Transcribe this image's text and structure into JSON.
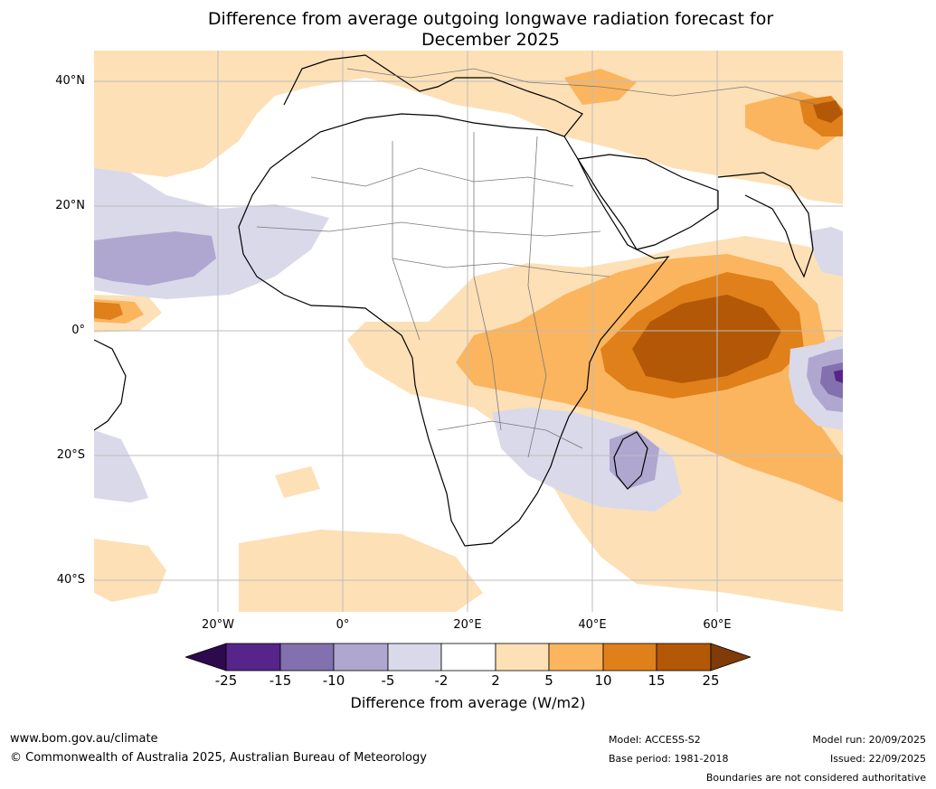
{
  "title": {
    "line1": "Difference from average outgoing longwave radiation forecast for",
    "line2": "December 2025"
  },
  "map": {
    "lat_labels": [
      "40°N",
      "20°N",
      "0°",
      "20°S",
      "40°S"
    ],
    "lon_labels": [
      "20°W",
      "0°",
      "20°E",
      "40°E",
      "60°E"
    ],
    "region": "Africa and surrounding oceans",
    "icons": [
      "coastline-icon",
      "country-border-icon"
    ]
  },
  "colorbar": {
    "tick_labels": [
      "-25",
      "-15",
      "-10",
      "-5",
      "-2",
      "2",
      "5",
      "10",
      "15",
      "25"
    ],
    "colors": {
      "below_min": "#2d0a4e",
      "m25_m15": "#56248a",
      "m15_m10": "#8271ae",
      "m10_m5": "#afa7cf",
      "m5_m2": "#d9d9ea",
      "m2_p2": "#ffffff",
      "p2_p5": "#fde0b6",
      "p5_p10": "#fbb55f",
      "p10_p15": "#e0801a",
      "p15_p25": "#b35806",
      "above_max": "#7f3b08"
    },
    "label": "Difference from average (W/m2)"
  },
  "footer": {
    "website": "www.bom.gov.au/climate",
    "copyright": "© Commonwealth of Australia 2025, Australian Bureau of Meteorology",
    "model": "Model: ACCESS-S2",
    "base_period": "Base period: 1981-2018",
    "model_run": "Model run: 20/09/2025",
    "issued": "Issued: 22/09/2025",
    "disclaimer": "Boundaries are not considered authoritative"
  }
}
